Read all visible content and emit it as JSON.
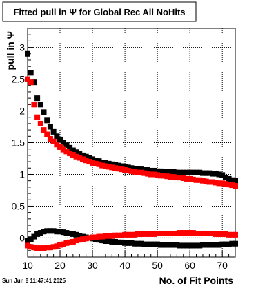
{
  "chart_data": {
    "type": "scatter",
    "title": "Fitted pull in  Ψ  for Global Rec All NoHits",
    "xlabel": "No. of Fit Points",
    "ylabel": "pull in  Ψ",
    "xlim": [
      10,
      74
    ],
    "ylim": [
      -0.3,
      3.3
    ],
    "xticks": [
      10,
      20,
      30,
      40,
      50,
      60,
      70
    ],
    "yticks": [
      0,
      0.5,
      1,
      1.5,
      2,
      2.5,
      3
    ],
    "grid": true,
    "legend": "none",
    "timestamp": "Sun Jun  8 11:47:41 2025",
    "series": [
      {
        "color": "#000000",
        "x": [
          10,
          11,
          12,
          13,
          14,
          15,
          16,
          17,
          18,
          19,
          20,
          21,
          22,
          23,
          24,
          25,
          26,
          27,
          28,
          29,
          30,
          31,
          32,
          33,
          34,
          35,
          36,
          37,
          38,
          39,
          40,
          41,
          42,
          43,
          44,
          45,
          46,
          47,
          48,
          49,
          50,
          51,
          52,
          53,
          54,
          55,
          56,
          57,
          58,
          59,
          60,
          61,
          62,
          63,
          64,
          65,
          66,
          67,
          68,
          69,
          70,
          71,
          72,
          73,
          74
        ],
        "values": [
          2.9,
          2.6,
          2.45,
          2.2,
          2.1,
          1.98,
          1.85,
          1.75,
          1.67,
          1.6,
          1.55,
          1.5,
          1.46,
          1.42,
          1.38,
          1.35,
          1.32,
          1.3,
          1.28,
          1.26,
          1.24,
          1.22,
          1.21,
          1.19,
          1.18,
          1.17,
          1.16,
          1.15,
          1.14,
          1.13,
          1.12,
          1.11,
          1.1,
          1.09,
          1.09,
          1.08,
          1.07,
          1.07,
          1.06,
          1.06,
          1.05,
          1.05,
          1.04,
          1.04,
          1.04,
          1.04,
          1.03,
          1.03,
          1.03,
          1.03,
          1.03,
          1.03,
          1.03,
          1.03,
          1.02,
          1.02,
          1.02,
          1.01,
          1.01,
          1.0,
          0.99,
          0.95,
          0.93,
          0.91,
          0.9
        ]
      },
      {
        "color": "#ff0000",
        "x": [
          10,
          11,
          12,
          13,
          14,
          15,
          16,
          17,
          18,
          19,
          20,
          21,
          22,
          23,
          24,
          25,
          26,
          27,
          28,
          29,
          30,
          31,
          32,
          33,
          34,
          35,
          36,
          37,
          38,
          39,
          40,
          41,
          42,
          43,
          44,
          45,
          46,
          47,
          48,
          49,
          50,
          51,
          52,
          53,
          54,
          55,
          56,
          57,
          58,
          59,
          60,
          61,
          62,
          63,
          64,
          65,
          66,
          67,
          68,
          69,
          70,
          71,
          72,
          73,
          74
        ],
        "values": [
          2.5,
          2.45,
          2.1,
          1.9,
          1.8,
          1.7,
          1.63,
          1.56,
          1.52,
          1.47,
          1.43,
          1.39,
          1.36,
          1.33,
          1.31,
          1.28,
          1.26,
          1.24,
          1.22,
          1.2,
          1.18,
          1.17,
          1.16,
          1.14,
          1.13,
          1.12,
          1.11,
          1.1,
          1.09,
          1.08,
          1.07,
          1.06,
          1.05,
          1.04,
          1.03,
          1.03,
          1.02,
          1.01,
          1.0,
          1.0,
          0.99,
          0.98,
          0.98,
          0.97,
          0.96,
          0.96,
          0.95,
          0.95,
          0.94,
          0.93,
          0.93,
          0.92,
          0.91,
          0.91,
          0.9,
          0.89,
          0.88,
          0.88,
          0.87,
          0.86,
          0.86,
          0.85,
          0.84,
          0.83,
          0.82
        ]
      },
      {
        "color": "#000000",
        "x": [
          10,
          11,
          12,
          13,
          14,
          15,
          16,
          17,
          18,
          19,
          20,
          21,
          22,
          23,
          24,
          25,
          26,
          27,
          28,
          29,
          30,
          31,
          32,
          33,
          34,
          35,
          36,
          37,
          38,
          39,
          40,
          41,
          42,
          43,
          44,
          45,
          46,
          47,
          48,
          49,
          50,
          51,
          52,
          53,
          54,
          55,
          56,
          57,
          58,
          59,
          60,
          61,
          62,
          63,
          64,
          65,
          66,
          67,
          68,
          69,
          70,
          71,
          72,
          73,
          74
        ],
        "values": [
          -0.05,
          -0.02,
          0.02,
          0.06,
          0.08,
          0.1,
          0.11,
          0.11,
          0.11,
          0.1,
          0.1,
          0.09,
          0.08,
          0.07,
          0.06,
          0.05,
          0.03,
          0.02,
          0.01,
          0.0,
          -0.01,
          -0.02,
          -0.03,
          -0.04,
          -0.05,
          -0.05,
          -0.06,
          -0.06,
          -0.07,
          -0.07,
          -0.08,
          -0.08,
          -0.08,
          -0.09,
          -0.09,
          -0.09,
          -0.1,
          -0.1,
          -0.1,
          -0.1,
          -0.1,
          -0.11,
          -0.11,
          -0.11,
          -0.11,
          -0.11,
          -0.11,
          -0.12,
          -0.12,
          -0.12,
          -0.12,
          -0.12,
          -0.12,
          -0.12,
          -0.11,
          -0.11,
          -0.11,
          -0.11,
          -0.11,
          -0.11,
          -0.1,
          -0.1,
          -0.1,
          -0.09,
          -0.09
        ]
      },
      {
        "color": "#ff0000",
        "x": [
          10,
          11,
          12,
          13,
          14,
          15,
          16,
          17,
          18,
          19,
          20,
          21,
          22,
          23,
          24,
          25,
          26,
          27,
          28,
          29,
          30,
          31,
          32,
          33,
          34,
          35,
          36,
          37,
          38,
          39,
          40,
          41,
          42,
          43,
          44,
          45,
          46,
          47,
          48,
          49,
          50,
          51,
          52,
          53,
          54,
          55,
          56,
          57,
          58,
          59,
          60,
          61,
          62,
          63,
          64,
          65,
          66,
          67,
          68,
          69,
          70,
          71,
          72,
          73,
          74
        ],
        "values": [
          -0.12,
          -0.14,
          -0.15,
          -0.16,
          -0.16,
          -0.16,
          -0.15,
          -0.15,
          -0.14,
          -0.13,
          -0.11,
          -0.1,
          -0.08,
          -0.07,
          -0.06,
          -0.04,
          -0.03,
          -0.02,
          -0.01,
          0.0,
          0.01,
          0.01,
          0.02,
          0.02,
          0.03,
          0.03,
          0.03,
          0.04,
          0.04,
          0.04,
          0.05,
          0.05,
          0.05,
          0.05,
          0.06,
          0.06,
          0.06,
          0.06,
          0.06,
          0.06,
          0.07,
          0.07,
          0.07,
          0.07,
          0.07,
          0.07,
          0.07,
          0.08,
          0.08,
          0.08,
          0.08,
          0.08,
          0.07,
          0.07,
          0.07,
          0.07,
          0.07,
          0.07,
          0.06,
          0.06,
          0.06,
          0.06,
          0.05,
          0.05,
          0.05
        ]
      }
    ]
  }
}
